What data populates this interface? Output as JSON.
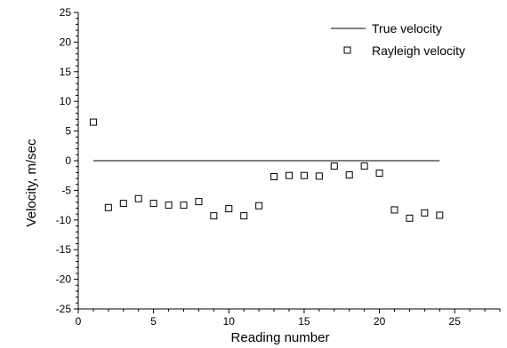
{
  "chart_data": {
    "type": "scatter",
    "title": "",
    "xlabel": "Reading number",
    "ylabel": "Velocity, m/sec",
    "xlim": [
      0,
      28
    ],
    "ylim": [
      -25,
      25
    ],
    "x_ticks": [
      0,
      5,
      10,
      15,
      20,
      25
    ],
    "y_ticks": [
      -25,
      -20,
      -15,
      -10,
      -5,
      0,
      5,
      10,
      15,
      20,
      25
    ],
    "x_tick_labels": [
      "0",
      "5",
      "10",
      "15",
      "20",
      "25"
    ],
    "y_tick_labels": [
      "-25",
      "-20",
      "-15",
      "-10",
      "-5",
      "0",
      "5",
      "10",
      "15",
      "20",
      "25"
    ],
    "grid": false,
    "legend_position": "top-right",
    "series": [
      {
        "name": "True velocity",
        "kind": "line",
        "x": [
          1,
          24
        ],
        "y": [
          0,
          0
        ]
      },
      {
        "name": "Rayleigh velocity",
        "kind": "marker-square-open",
        "x": [
          1,
          2,
          3,
          4,
          5,
          6,
          7,
          8,
          9,
          10,
          11,
          12,
          13,
          14,
          15,
          16,
          17,
          18,
          19,
          20,
          21,
          22,
          23,
          24
        ],
        "y": [
          6.5,
          -7.9,
          -7.2,
          -6.4,
          -7.2,
          -7.5,
          -7.5,
          -6.9,
          -9.3,
          -8.1,
          -9.3,
          -7.6,
          -2.7,
          -2.5,
          -2.5,
          -2.6,
          -0.9,
          -2.4,
          -0.9,
          -2.1,
          -8.3,
          -9.7,
          -8.8,
          -9.2
        ]
      }
    ]
  }
}
